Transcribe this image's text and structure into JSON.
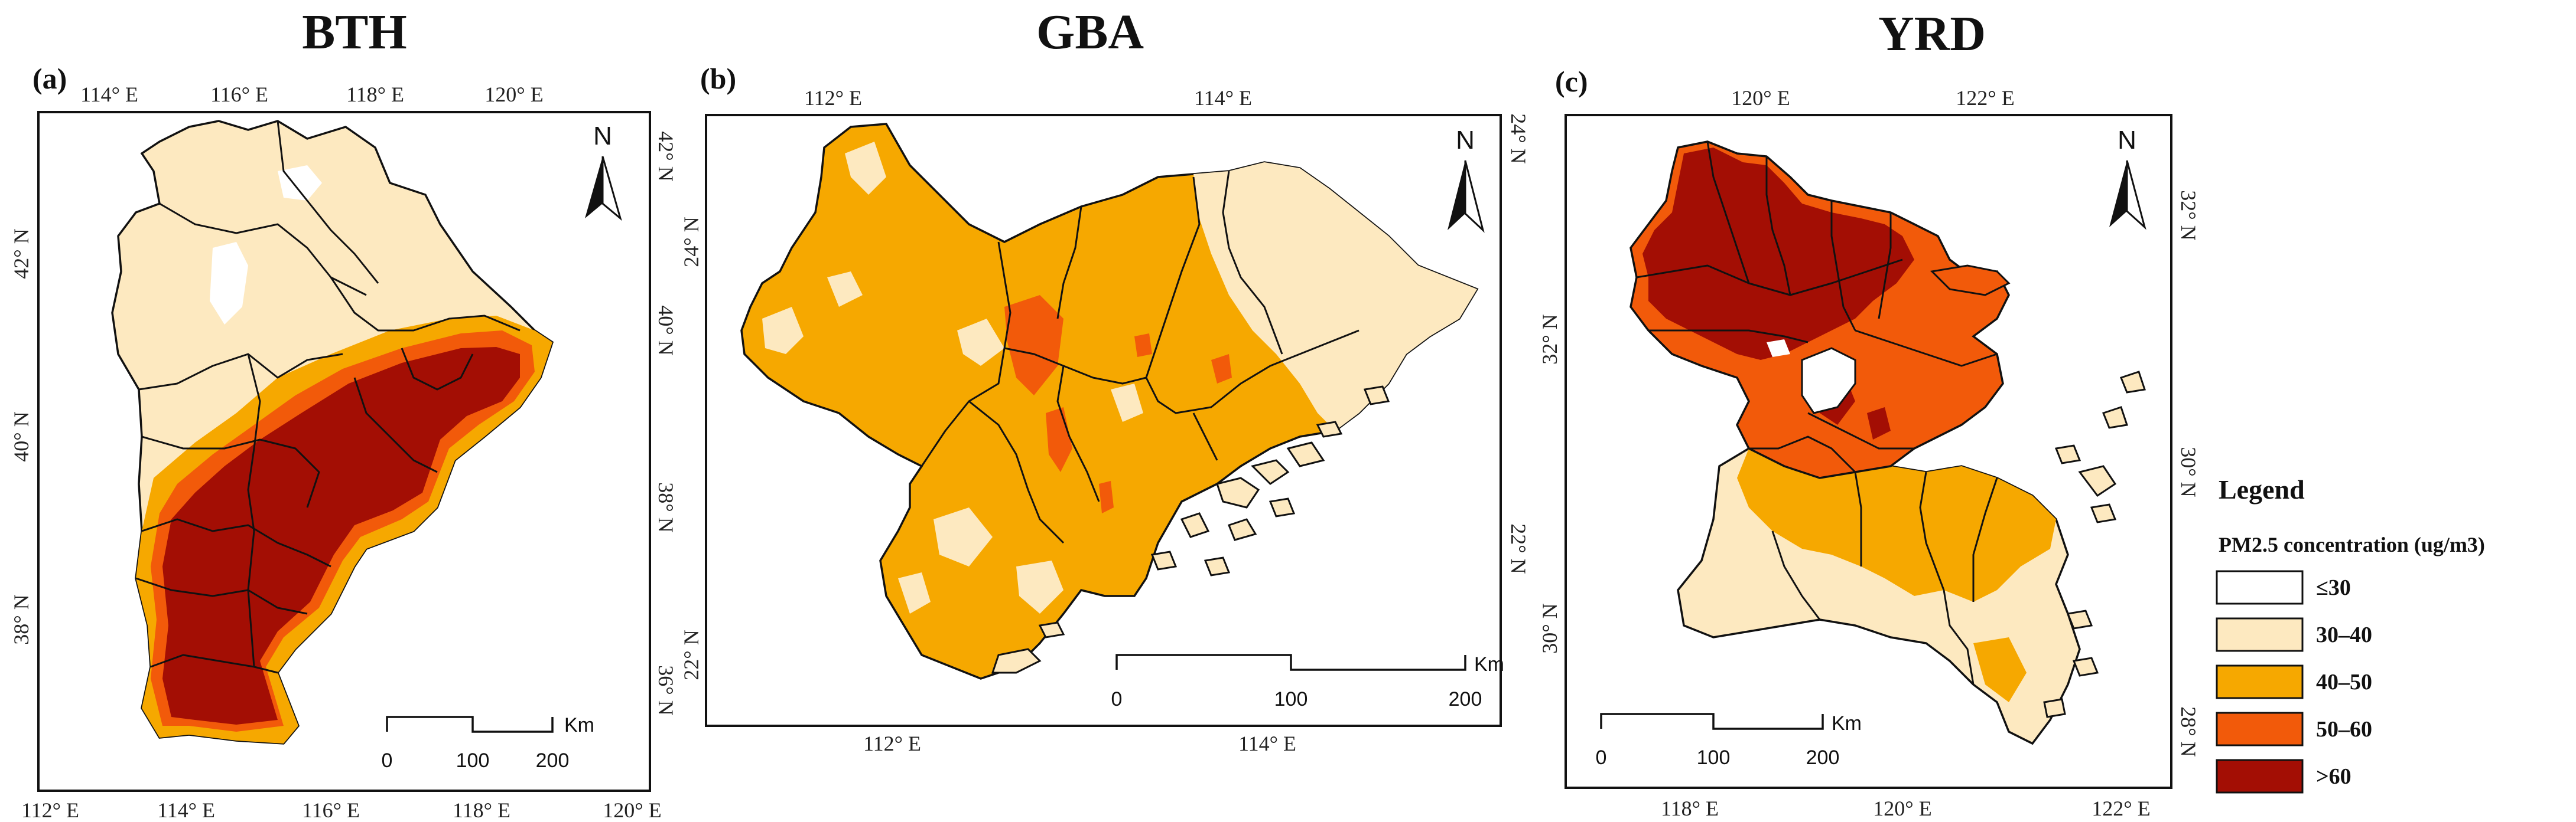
{
  "colors": {
    "le30": "#ffffff",
    "c30_40": "#fde9c0",
    "c40_50": "#f6a800",
    "c50_60": "#f25a0a",
    "gt60": "#a30e04"
  },
  "panels": {
    "bth": {
      "title": "BTH",
      "label": "(a)",
      "top_ticks": [
        "114° E",
        "116° E",
        "118° E",
        "120° E"
      ],
      "bottom_ticks": [
        "112° E",
        "114° E",
        "116° E",
        "118° E",
        "120° E"
      ],
      "left_ticks": [
        "42° N",
        "40° N",
        "38° N"
      ],
      "right_ticks": [
        "42° N",
        "40° N",
        "38° N",
        "36° N"
      ],
      "north": "N",
      "scale": {
        "s0": "0",
        "s1": "100",
        "s2": "200",
        "unit": "Km"
      }
    },
    "gba": {
      "title": "GBA",
      "label": "(b)",
      "top_ticks": [
        "112° E",
        "114° E"
      ],
      "bottom_ticks": [
        "112° E",
        "114° E"
      ],
      "left_ticks": [
        "24° N",
        "22° N"
      ],
      "right_ticks": [
        "24° N",
        "22° N"
      ],
      "north": "N",
      "scale": {
        "s0": "0",
        "s1": "100",
        "s2": "200",
        "unit": "Km"
      }
    },
    "yrd": {
      "title": "YRD",
      "label": "(c)",
      "top_ticks": [
        "120° E",
        "122° E"
      ],
      "bottom_ticks": [
        "118° E",
        "120° E",
        "122° E"
      ],
      "left_ticks": [
        "32° N",
        "30° N"
      ],
      "right_ticks": [
        "32° N",
        "30° N",
        "28° N"
      ],
      "north": "N",
      "scale": {
        "s0": "0",
        "s1": "100",
        "s2": "200",
        "unit": "Km"
      }
    }
  },
  "legend": {
    "title": "Legend",
    "subtitle": "PM2.5 concentration (ug/m3)",
    "items": [
      {
        "label": "≤30",
        "color": "#ffffff"
      },
      {
        "label": "30–40",
        "color": "#fde9c0"
      },
      {
        "label": "40–50",
        "color": "#f6a800"
      },
      {
        "label": "50–60",
        "color": "#f25a0a"
      },
      {
        "label": ">60",
        "color": "#a30e04"
      }
    ]
  }
}
